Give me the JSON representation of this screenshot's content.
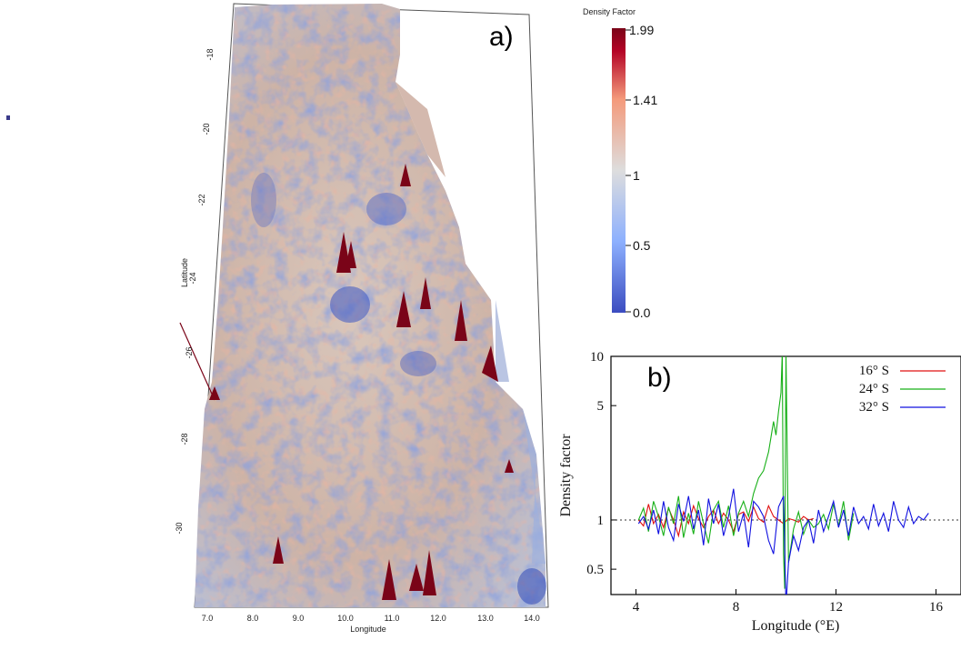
{
  "panel_a": {
    "label": "a)",
    "x_title": "Longitude",
    "y_title": "Latitude",
    "x_ticks": [
      "7.0",
      "8.0",
      "9.0",
      "10.0",
      "11.0",
      "12.0",
      "13.0",
      "14.0"
    ],
    "y_ticks": [
      "-18",
      "-20",
      "-22",
      "-24",
      "-26",
      "-28",
      "-30"
    ]
  },
  "colorbar": {
    "title": "Density  Factor",
    "labels": [
      "1.99",
      "1.41",
      "1",
      "0.5",
      "0.0"
    ],
    "colors": [
      "#3b4cc0",
      "#8db0fe",
      "#dddddd",
      "#f49a7b",
      "#b40426",
      "#7a0418"
    ]
  },
  "chart_data": {
    "type": "line",
    "panel_label": "b)",
    "xlabel": "Longitude (°E)",
    "ylabel": "Density factor",
    "xlim": [
      3,
      17
    ],
    "ylim": [
      0.35,
      10
    ],
    "log_y": true,
    "x_ticks": [
      4,
      8,
      12,
      16
    ],
    "y_ticks": [
      0.5,
      1,
      5,
      10
    ],
    "reference_line": 1,
    "legend_position": "top-right",
    "series": [
      {
        "name": "16° S",
        "color": "#e01010",
        "x": [
          4.1,
          4.3,
          4.5,
          4.7,
          4.9,
          5.1,
          5.3,
          5.5,
          5.7,
          5.9,
          6.1,
          6.3,
          6.5,
          6.7,
          6.9,
          7.1,
          7.3,
          7.5,
          7.7,
          7.9,
          8.1,
          8.3,
          8.5,
          8.7,
          8.9,
          9.1,
          9.3,
          9.5,
          9.7,
          9.9,
          10.1,
          10.3,
          10.5,
          10.7,
          10.9,
          11.1
        ],
        "y": [
          1.0,
          0.92,
          1.25,
          0.95,
          1.08,
          0.9,
          1.18,
          1.0,
          0.8,
          1.12,
          0.95,
          1.22,
          1.02,
          0.9,
          1.05,
          1.15,
          0.95,
          1.1,
          1.0,
          0.85,
          1.08,
          1.12,
          0.98,
          1.2,
          1.02,
          0.97,
          1.22,
          1.05,
          1.0,
          0.95,
          1.02,
          1.0,
          0.97,
          1.05,
          1.0,
          1.02
        ]
      },
      {
        "name": "24° S",
        "color": "#18b018",
        "x": [
          4.1,
          4.3,
          4.5,
          4.7,
          4.9,
          5.1,
          5.3,
          5.5,
          5.7,
          5.9,
          6.1,
          6.3,
          6.5,
          6.7,
          6.9,
          7.1,
          7.3,
          7.5,
          7.7,
          7.9,
          8.1,
          8.3,
          8.5,
          8.7,
          8.9,
          9.1,
          9.3,
          9.4,
          9.5,
          9.6,
          9.7,
          9.8,
          9.85,
          9.9,
          9.95,
          10.0,
          10.1,
          10.3,
          10.5,
          10.7,
          10.9,
          11.1,
          11.3,
          11.5,
          11.7,
          11.9,
          12.1,
          12.3,
          12.5,
          12.7
        ],
        "y": [
          1.0,
          1.18,
          0.85,
          1.3,
          1.05,
          0.8,
          1.2,
          0.95,
          1.4,
          0.78,
          1.1,
          0.82,
          1.3,
          0.95,
          0.72,
          1.15,
          1.3,
          0.9,
          1.22,
          0.8,
          1.1,
          1.3,
          1.05,
          1.45,
          1.8,
          2.0,
          2.6,
          3.2,
          4.0,
          3.3,
          4.6,
          6.0,
          10.5,
          0.62,
          0.38,
          10.5,
          0.55,
          0.88,
          1.12,
          0.82,
          1.0,
          0.9,
          0.95,
          1.08,
          0.88,
          1.25,
          0.92,
          1.3,
          0.75,
          1.1
        ]
      },
      {
        "name": "32° S",
        "color": "#1010e0",
        "x": [
          4.1,
          4.3,
          4.5,
          4.7,
          4.9,
          5.1,
          5.3,
          5.5,
          5.7,
          5.9,
          6.1,
          6.3,
          6.5,
          6.7,
          6.9,
          7.1,
          7.3,
          7.5,
          7.7,
          7.9,
          8.1,
          8.3,
          8.5,
          8.7,
          8.9,
          9.1,
          9.3,
          9.5,
          9.7,
          9.9,
          10.0,
          10.1,
          10.3,
          10.5,
          10.7,
          10.9,
          11.1,
          11.3,
          11.5,
          11.7,
          11.9,
          12.1,
          12.3,
          12.5,
          12.7,
          12.9,
          13.1,
          13.3,
          13.5,
          13.7,
          13.9,
          14.1,
          14.3,
          14.5,
          14.7,
          14.9,
          15.1,
          15.3,
          15.5,
          15.7
        ],
        "y": [
          0.95,
          1.05,
          0.88,
          1.15,
          0.82,
          1.3,
          0.9,
          0.75,
          1.25,
          0.98,
          1.4,
          0.88,
          1.15,
          0.7,
          1.35,
          0.95,
          1.25,
          0.8,
          1.05,
          1.55,
          0.85,
          1.1,
          0.68,
          1.3,
          1.2,
          1.05,
          0.75,
          0.62,
          1.2,
          1.4,
          0.3,
          0.55,
          0.8,
          0.65,
          0.9,
          1.0,
          0.72,
          1.15,
          0.85,
          1.05,
          1.3,
          0.9,
          1.15,
          0.8,
          1.2,
          0.95,
          1.05,
          0.88,
          1.25,
          0.92,
          1.1,
          0.85,
          1.3,
          1.0,
          0.9,
          1.2,
          0.95,
          1.05,
          1.0,
          1.1
        ]
      }
    ]
  }
}
